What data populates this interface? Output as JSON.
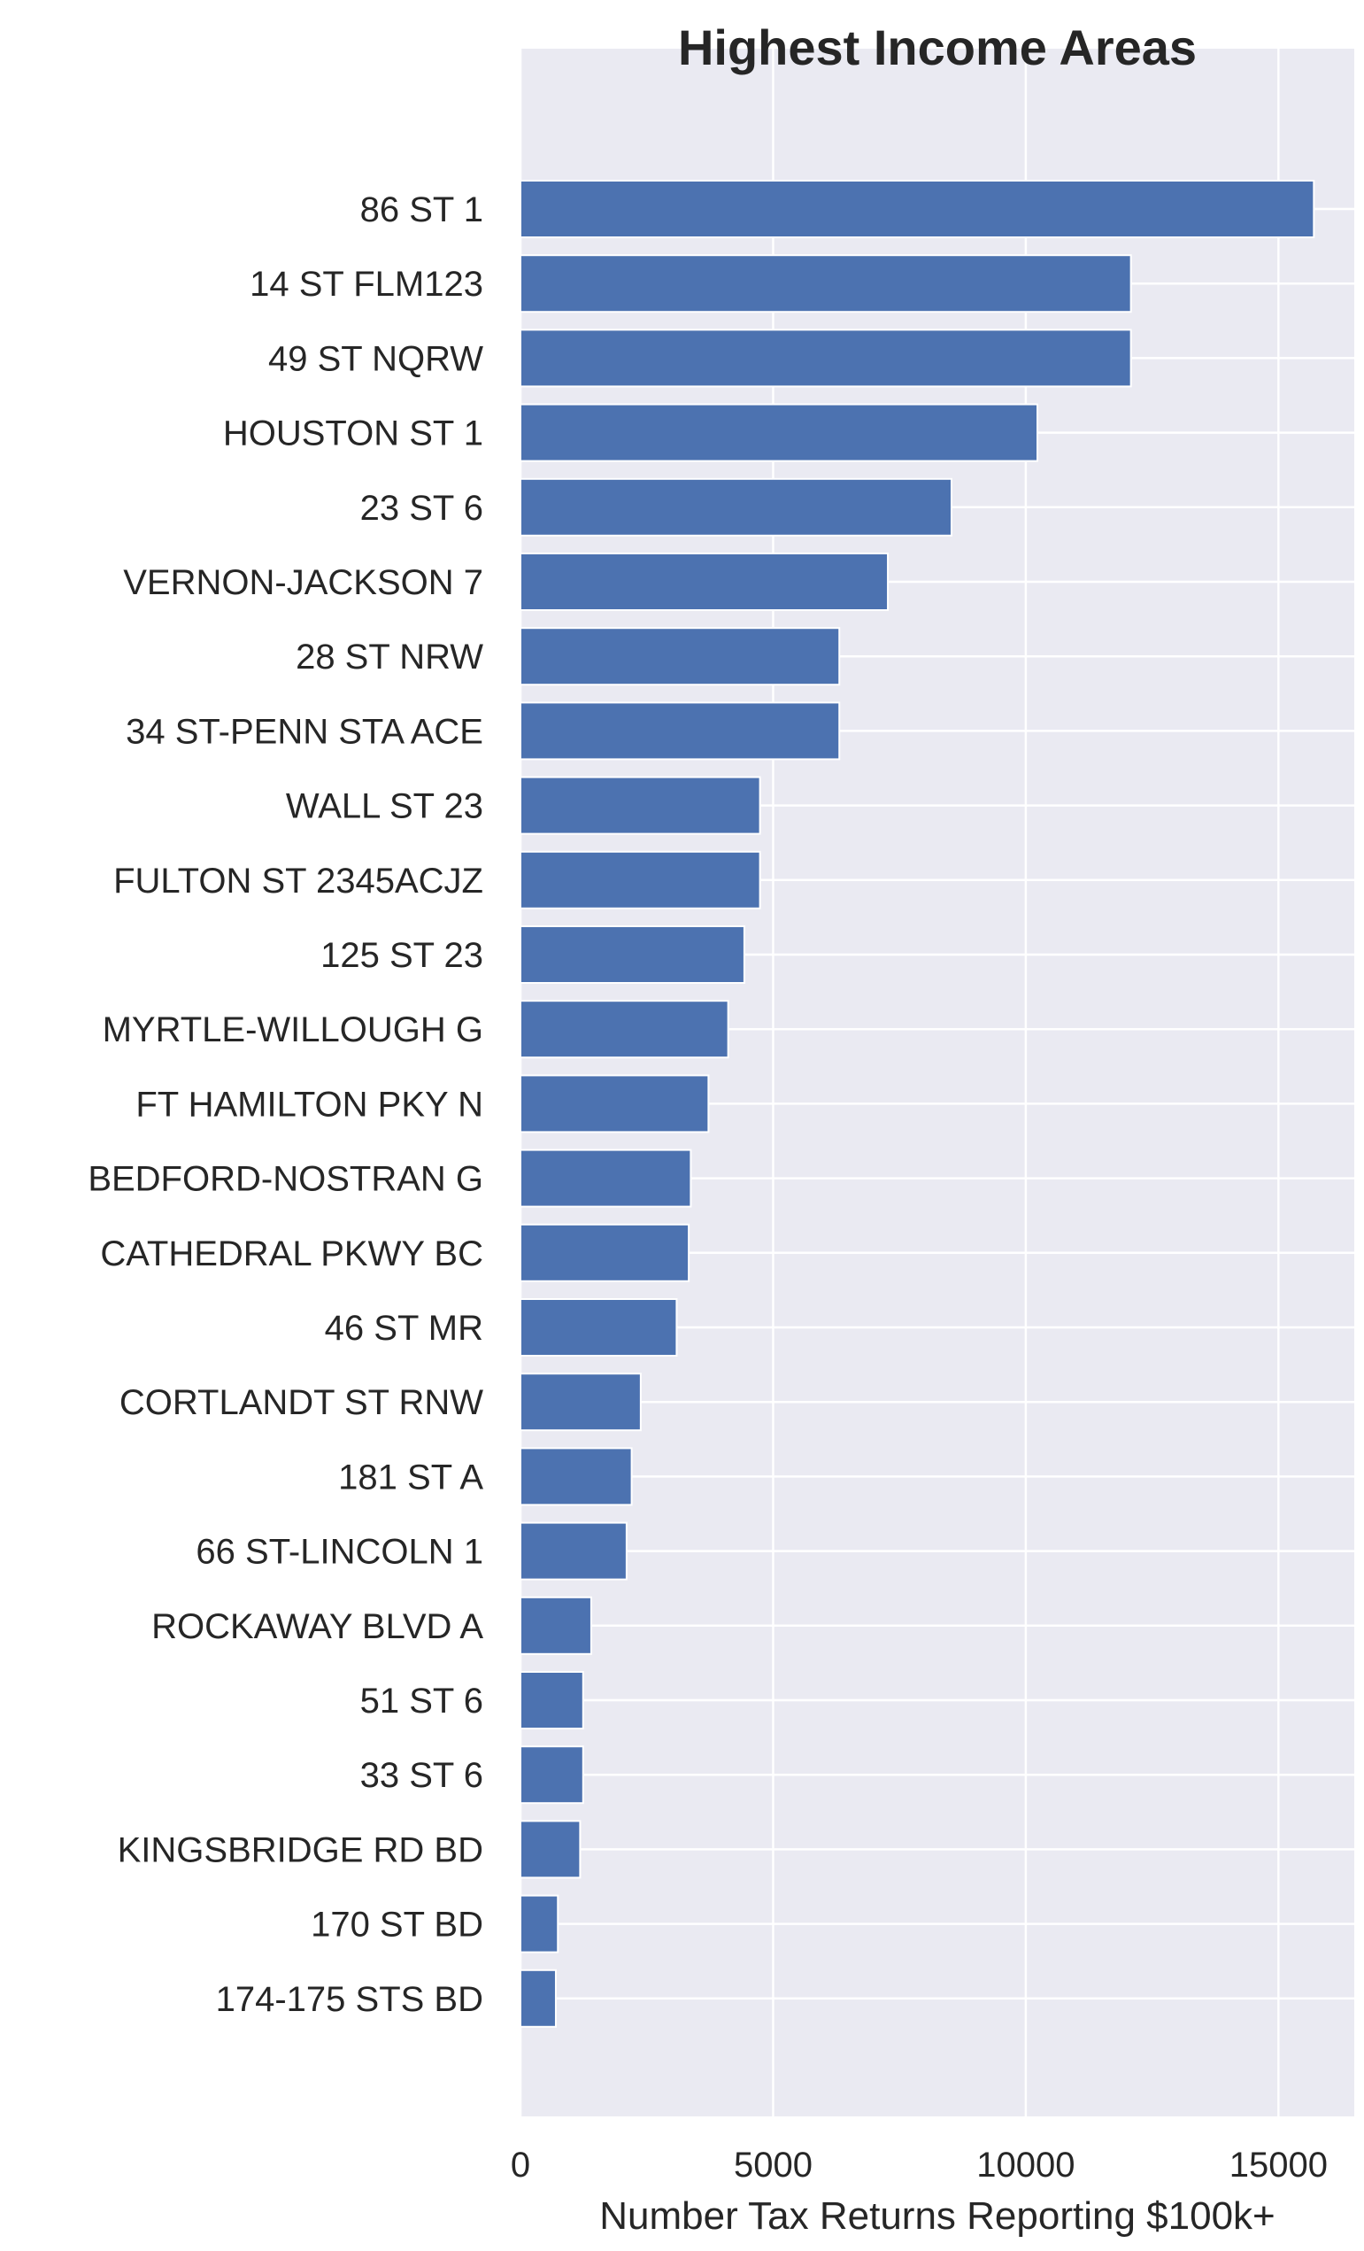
{
  "chart_data": {
    "type": "bar",
    "orientation": "horizontal",
    "title": "Highest Income Areas",
    "xlabel": "Number Tax Returns Reporting $100k+",
    "ylabel": "",
    "xlim": [
      0,
      16500
    ],
    "xticks": [
      0,
      5000,
      10000,
      15000
    ],
    "grid": true,
    "categories": [
      "86 ST 1",
      "14 ST FLM123",
      "49 ST NQRW",
      "HOUSTON ST 1",
      "23 ST 6",
      "VERNON-JACKSON 7",
      "28 ST NRW",
      "34 ST-PENN STA ACE",
      "WALL ST 23",
      "FULTON ST 2345ACJZ",
      "125 ST 23",
      "MYRTLE-WILLOUGH G",
      "FT HAMILTON PKY N",
      "BEDFORD-NOSTRAN G",
      "CATHEDRAL PKWY BC",
      "46 ST MR",
      "CORTLANDT ST RNW",
      "181 ST A",
      "66 ST-LINCOLN 1",
      "ROCKAWAY BLVD A",
      "51 ST 6",
      "33 ST 6",
      "KINGSBRIDGE RD BD",
      "170 ST BD",
      "174-175 STS BD"
    ],
    "values": [
      15700,
      12080,
      12080,
      10230,
      8530,
      7270,
      6310,
      6310,
      4740,
      4740,
      4430,
      4110,
      3720,
      3370,
      3330,
      3090,
      2380,
      2200,
      2100,
      1400,
      1240,
      1240,
      1180,
      740,
      700
    ],
    "colors": {
      "bar": "#4c72b0",
      "plot_background": "#eaeaf2",
      "grid": "#ffffff",
      "text": "#262626"
    }
  }
}
